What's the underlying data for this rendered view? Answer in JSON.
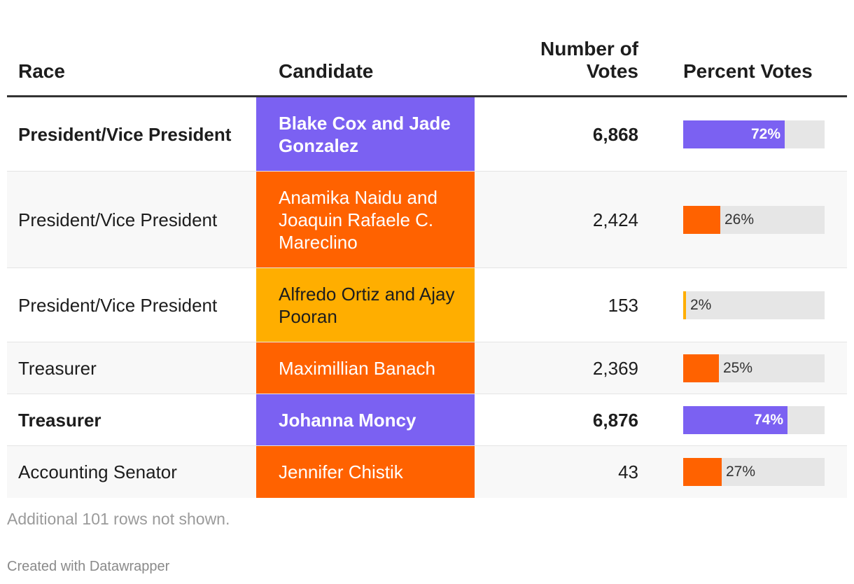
{
  "headers": {
    "race": "Race",
    "candidate": "Candidate",
    "votes_line1": "Number of",
    "votes_line2": "Votes",
    "percent": "Percent Votes"
  },
  "colors": {
    "purple": "#7b61f2",
    "orange": "#ff6200",
    "yellow": "#ffae00"
  },
  "chart_data": {
    "type": "table",
    "columns": [
      "Race",
      "Candidate",
      "Number of Votes",
      "Percent Votes"
    ],
    "rows": [
      {
        "race": "President/Vice President",
        "candidate": "Blake Cox and Jade Gonzalez",
        "votes": "6,868",
        "percent": 72,
        "percent_label": "72%",
        "color": "#7b61f2",
        "bold": true
      },
      {
        "race": "President/Vice President",
        "candidate": "Anamika Naidu and Joaquin Rafaele C. Mareclino",
        "votes": "2,424",
        "percent": 26,
        "percent_label": "26%",
        "color": "#ff6200",
        "bold": false
      },
      {
        "race": "President/Vice President",
        "candidate": "Alfredo Ortiz and Ajay Pooran",
        "votes": "153",
        "percent": 2,
        "percent_label": "2%",
        "color": "#ffae00",
        "bold": false
      },
      {
        "race": "Treasurer",
        "candidate": "Maximillian Banach",
        "votes": "2,369",
        "percent": 25,
        "percent_label": "25%",
        "color": "#ff6200",
        "bold": false
      },
      {
        "race": "Treasurer",
        "candidate": "Johanna Moncy",
        "votes": "6,876",
        "percent": 74,
        "percent_label": "74%",
        "color": "#7b61f2",
        "bold": true
      },
      {
        "race": "Accounting Senator",
        "candidate": "Jennifer Chistik",
        "votes": "43",
        "percent": 27,
        "percent_label": "27%",
        "color": "#ff6200",
        "bold": false
      }
    ]
  },
  "footnote": "Additional 101 rows not shown.",
  "credit": "Created with Datawrapper"
}
